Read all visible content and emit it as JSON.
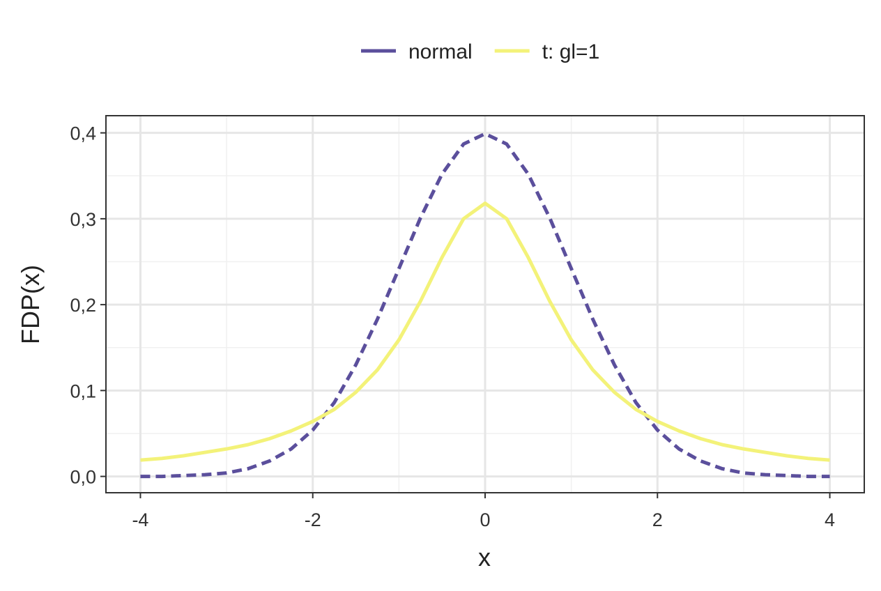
{
  "chart_data": {
    "type": "line",
    "xlabel": "x",
    "ylabel": "FDP(x)",
    "x": [
      -4,
      -3.75,
      -3.5,
      -3.25,
      -3,
      -2.75,
      -2.5,
      -2.25,
      -2,
      -1.75,
      -1.5,
      -1.25,
      -1,
      -0.75,
      -0.5,
      -0.25,
      0,
      0.25,
      0.5,
      0.75,
      1,
      1.25,
      1.5,
      1.75,
      2,
      2.25,
      2.5,
      2.75,
      3,
      3.25,
      3.5,
      3.75,
      4
    ],
    "series": [
      {
        "name": "normal",
        "color": "#5b4f9c",
        "dashed": true,
        "values": [
          0.0,
          0.0,
          0.001,
          0.002,
          0.004,
          0.009,
          0.018,
          0.032,
          0.054,
          0.086,
          0.13,
          0.183,
          0.242,
          0.301,
          0.352,
          0.387,
          0.399,
          0.387,
          0.352,
          0.301,
          0.242,
          0.183,
          0.13,
          0.086,
          0.054,
          0.032,
          0.018,
          0.009,
          0.004,
          0.002,
          0.001,
          0.0,
          0.0
        ]
      },
      {
        "name": "t: gl=1",
        "color": "#f3f279",
        "dashed": false,
        "values": [
          0.019,
          0.021,
          0.024,
          0.028,
          0.032,
          0.037,
          0.044,
          0.053,
          0.064,
          0.078,
          0.098,
          0.124,
          0.159,
          0.204,
          0.255,
          0.3,
          0.318,
          0.3,
          0.255,
          0.204,
          0.159,
          0.124,
          0.098,
          0.078,
          0.064,
          0.053,
          0.044,
          0.037,
          0.032,
          0.028,
          0.024,
          0.021,
          0.019
        ]
      }
    ],
    "xlim": [
      -4.4,
      4.4
    ],
    "ylim": [
      -0.019,
      0.42
    ],
    "xticks": [
      -4,
      -2,
      0,
      2,
      4
    ],
    "yticks": [
      {
        "value": 0,
        "label": "0,0"
      },
      {
        "value": 0.1,
        "label": "0,1"
      },
      {
        "value": 0.2,
        "label": "0,2"
      },
      {
        "value": 0.3,
        "label": "0,3"
      },
      {
        "value": 0.4,
        "label": "0,4"
      }
    ],
    "minor_xticks": [
      -3,
      -1,
      1,
      3
    ],
    "minor_yticks": [
      0.05,
      0.15,
      0.25,
      0.35
    ],
    "grid": true,
    "legend": "top"
  }
}
